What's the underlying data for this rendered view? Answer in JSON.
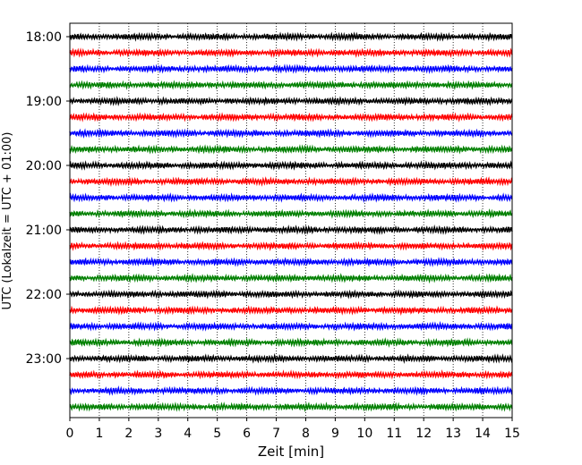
{
  "chart_data": {
    "type": "line",
    "title": "",
    "xlabel": "Zeit  [min]",
    "ylabel": "UTC (Lokalzeit = UTC + 01:00)",
    "xlim": [
      0,
      15
    ],
    "xticks": [
      0,
      1,
      2,
      3,
      4,
      5,
      6,
      7,
      8,
      9,
      10,
      11,
      12,
      13,
      14,
      15
    ],
    "x_grid": true,
    "y_ticks": [
      "18:00",
      "19:00",
      "20:00",
      "21:00",
      "22:00",
      "23:00"
    ],
    "trace_interval_min": 15,
    "start_utc": "18:00",
    "end_utc": "23:45",
    "trace_colors": [
      "#000000",
      "#ff0000",
      "#0000ff",
      "#008000"
    ],
    "traces": [
      {
        "start": "18:00",
        "color": "#000000"
      },
      {
        "start": "18:15",
        "color": "#ff0000"
      },
      {
        "start": "18:30",
        "color": "#0000ff"
      },
      {
        "start": "18:45",
        "color": "#008000"
      },
      {
        "start": "19:00",
        "color": "#000000"
      },
      {
        "start": "19:15",
        "color": "#ff0000"
      },
      {
        "start": "19:30",
        "color": "#0000ff"
      },
      {
        "start": "19:45",
        "color": "#008000"
      },
      {
        "start": "20:00",
        "color": "#000000"
      },
      {
        "start": "20:15",
        "color": "#ff0000"
      },
      {
        "start": "20:30",
        "color": "#0000ff"
      },
      {
        "start": "20:45",
        "color": "#008000"
      },
      {
        "start": "21:00",
        "color": "#000000"
      },
      {
        "start": "21:15",
        "color": "#ff0000"
      },
      {
        "start": "21:30",
        "color": "#0000ff"
      },
      {
        "start": "21:45",
        "color": "#008000"
      },
      {
        "start": "22:00",
        "color": "#000000"
      },
      {
        "start": "22:15",
        "color": "#ff0000"
      },
      {
        "start": "22:30",
        "color": "#0000ff"
      },
      {
        "start": "22:45",
        "color": "#008000"
      },
      {
        "start": "23:00",
        "color": "#000000"
      },
      {
        "start": "23:15",
        "color": "#ff0000"
      },
      {
        "start": "23:30",
        "color": "#0000ff"
      },
      {
        "start": "23:45",
        "color": "#008000"
      }
    ]
  }
}
